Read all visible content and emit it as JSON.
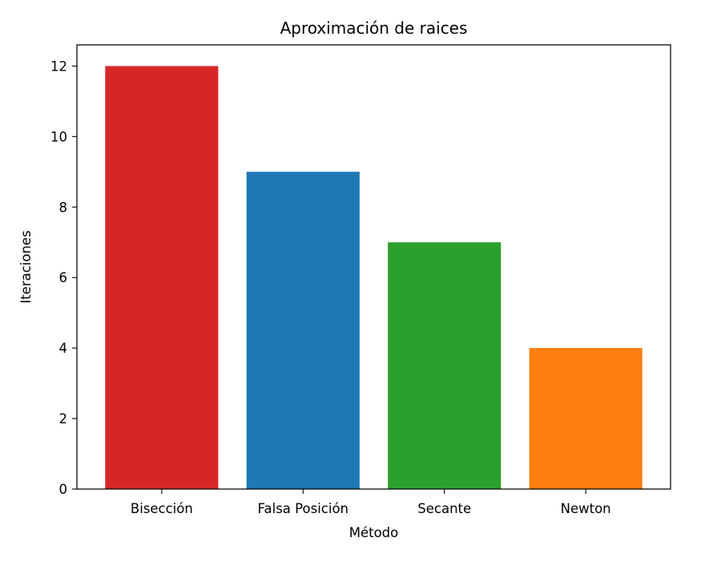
{
  "chart_data": {
    "type": "bar",
    "title": "Aproximación de raices",
    "xlabel": "Método",
    "ylabel": "Iteraciones",
    "categories": [
      "Bisección",
      "Falsa Posición",
      "Secante",
      "Newton"
    ],
    "values": [
      12,
      9,
      7,
      4
    ],
    "colors": [
      "#d62728",
      "#1f77b4",
      "#2ca02c",
      "#ff7f0e"
    ],
    "ylim": [
      0,
      12.6
    ],
    "yticks": [
      0,
      2,
      4,
      6,
      8,
      10,
      12
    ],
    "grid": false,
    "legend": "none"
  }
}
